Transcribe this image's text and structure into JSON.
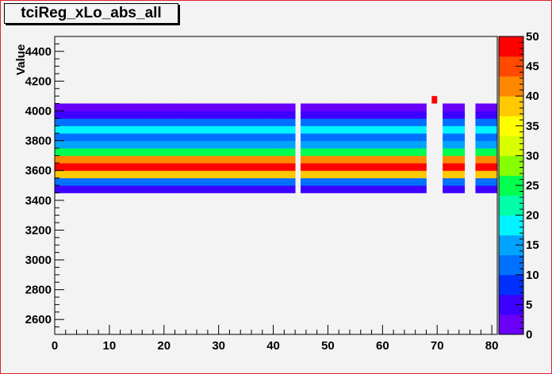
{
  "chart_data": {
    "type": "heatmap",
    "title": "tciReg_xLo_abs_all",
    "xlabel": "",
    "ylabel": "Value",
    "xlim": [
      0,
      81
    ],
    "ylim": [
      2500,
      4500
    ],
    "zlim": [
      0,
      50
    ],
    "x_ticks": [
      0,
      10,
      20,
      30,
      40,
      50,
      60,
      70,
      80
    ],
    "y_ticks": [
      2600,
      2800,
      3000,
      3200,
      3400,
      3600,
      3800,
      4000,
      4200,
      4400
    ],
    "z_ticks": [
      0,
      5,
      10,
      15,
      20,
      25,
      30,
      35,
      40,
      45,
      50
    ],
    "colorbar_colors": [
      "#6a00f8",
      "#3d00ff",
      "#0030ff",
      "#0070ff",
      "#00a4ff",
      "#00f4ff",
      "#00ffa8",
      "#00ff50",
      "#88ff00",
      "#d8ff00",
      "#ffff00",
      "#ffc800",
      "#ff8800",
      "#ff4a00",
      "#ff0000"
    ],
    "row_bins": [
      {
        "y0": 3450,
        "y1": 3500,
        "z": 5
      },
      {
        "y0": 3500,
        "y1": 3550,
        "z": 11
      },
      {
        "y0": 3550,
        "y1": 3600,
        "z": 39
      },
      {
        "y0": 3600,
        "y1": 3650,
        "z": 50
      },
      {
        "y0": 3650,
        "y1": 3700,
        "z": 40
      },
      {
        "y0": 3700,
        "y1": 3750,
        "z": 24
      },
      {
        "y0": 3750,
        "y1": 3800,
        "z": 14
      },
      {
        "y0": 3800,
        "y1": 3850,
        "z": 10
      },
      {
        "y0": 3850,
        "y1": 3900,
        "z": 17
      },
      {
        "y0": 3900,
        "y1": 3950,
        "z": 10
      },
      {
        "y0": 3950,
        "y1": 4000,
        "z": 4
      },
      {
        "y0": 4000,
        "y1": 4050,
        "z": 2
      }
    ],
    "x_bin_width": 1,
    "empty_x_bins": [
      44,
      68,
      69,
      70,
      75,
      76
    ],
    "extra_cells": [
      {
        "x0": 69,
        "x1": 70,
        "y0": 4050,
        "y1": 4100,
        "z": 50
      }
    ]
  }
}
